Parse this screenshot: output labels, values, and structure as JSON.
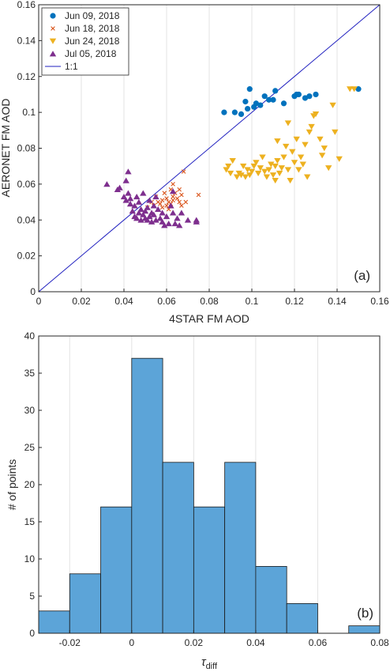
{
  "chart_data": [
    {
      "panel_label": "(a)",
      "type": "scatter",
      "xlabel": "4STAR FM AOD",
      "ylabel": "AERONET FM AOD",
      "xlim": [
        0,
        0.16
      ],
      "ylim": [
        0,
        0.16
      ],
      "xticks": [
        "0",
        "0.02",
        "0.04",
        "0.06",
        "0.08",
        "0.1",
        "0.12",
        "0.14",
        "0.16"
      ],
      "yticks": [
        "0",
        "0.02",
        "0.04",
        "0.06",
        "0.08",
        "0.1",
        "0.12",
        "0.14",
        "0.16"
      ],
      "xgrid": true,
      "ygrid": false,
      "legend_position": "top-left",
      "reference_line": {
        "name": "1:1",
        "color": "#1f1fbf",
        "x": [
          0,
          0.16
        ],
        "y": [
          0,
          0.16
        ]
      },
      "series": [
        {
          "name": "Jun 09, 2018",
          "marker": "circle",
          "color": "#0072bd",
          "points": [
            [
              0.087,
              0.1
            ],
            [
              0.092,
              0.1
            ],
            [
              0.095,
              0.099
            ],
            [
              0.097,
              0.106
            ],
            [
              0.098,
              0.102
            ],
            [
              0.099,
              0.113
            ],
            [
              0.101,
              0.103
            ],
            [
              0.102,
              0.105
            ],
            [
              0.104,
              0.104
            ],
            [
              0.106,
              0.109
            ],
            [
              0.108,
              0.107
            ],
            [
              0.11,
              0.107
            ],
            [
              0.111,
              0.112
            ],
            [
              0.115,
              0.105
            ],
            [
              0.12,
              0.109
            ],
            [
              0.121,
              0.11
            ],
            [
              0.122,
              0.11
            ],
            [
              0.125,
              0.108
            ],
            [
              0.127,
              0.109
            ],
            [
              0.13,
              0.11
            ],
            [
              0.15,
              0.113
            ]
          ]
        },
        {
          "name": "Jun 18, 2018",
          "marker": "x",
          "color": "#d95319",
          "points": [
            [
              0.051,
              0.047
            ],
            [
              0.053,
              0.05
            ],
            [
              0.054,
              0.048
            ],
            [
              0.055,
              0.053
            ],
            [
              0.056,
              0.05
            ],
            [
              0.057,
              0.049
            ],
            [
              0.058,
              0.051
            ],
            [
              0.059,
              0.055
            ],
            [
              0.06,
              0.052
            ],
            [
              0.06,
              0.048
            ],
            [
              0.061,
              0.05
            ],
            [
              0.062,
              0.057
            ],
            [
              0.062,
              0.049
            ],
            [
              0.063,
              0.053
            ],
            [
              0.063,
              0.051
            ],
            [
              0.064,
              0.055
            ],
            [
              0.065,
              0.052
            ],
            [
              0.066,
              0.05
            ],
            [
              0.066,
              0.057
            ],
            [
              0.067,
              0.048
            ],
            [
              0.067,
              0.054
            ],
            [
              0.068,
              0.067
            ],
            [
              0.069,
              0.05
            ],
            [
              0.075,
              0.054
            ],
            [
              0.063,
              0.06
            ],
            [
              0.061,
              0.046
            ],
            [
              0.058,
              0.047
            ]
          ]
        },
        {
          "name": "Jun 24, 2018",
          "marker": "triangle-down",
          "color": "#edb120",
          "points": [
            [
              0.088,
              0.068
            ],
            [
              0.089,
              0.07
            ],
            [
              0.09,
              0.066
            ],
            [
              0.091,
              0.073
            ],
            [
              0.093,
              0.064
            ],
            [
              0.094,
              0.066
            ],
            [
              0.095,
              0.065
            ],
            [
              0.096,
              0.07
            ],
            [
              0.097,
              0.064
            ],
            [
              0.098,
              0.068
            ],
            [
              0.099,
              0.065
            ],
            [
              0.1,
              0.067
            ],
            [
              0.101,
              0.07
            ],
            [
              0.102,
              0.072
            ],
            [
              0.103,
              0.066
            ],
            [
              0.104,
              0.069
            ],
            [
              0.105,
              0.075
            ],
            [
              0.106,
              0.067
            ],
            [
              0.107,
              0.064
            ],
            [
              0.108,
              0.068
            ],
            [
              0.109,
              0.071
            ],
            [
              0.11,
              0.065
            ],
            [
              0.111,
              0.062
            ],
            [
              0.111,
              0.07
            ],
            [
              0.112,
              0.073
            ],
            [
              0.112,
              0.084
            ],
            [
              0.113,
              0.066
            ],
            [
              0.114,
              0.069
            ],
            [
              0.115,
              0.075
            ],
            [
              0.116,
              0.081
            ],
            [
              0.117,
              0.068
            ],
            [
              0.117,
              0.094
            ],
            [
              0.118,
              0.062
            ],
            [
              0.119,
              0.078
            ],
            [
              0.12,
              0.072
            ],
            [
              0.121,
              0.085
            ],
            [
              0.122,
              0.068
            ],
            [
              0.123,
              0.075
            ],
            [
              0.124,
              0.071
            ],
            [
              0.125,
              0.082
            ],
            [
              0.126,
              0.064
            ],
            [
              0.127,
              0.089
            ],
            [
              0.128,
              0.092
            ],
            [
              0.129,
              0.098
            ],
            [
              0.13,
              0.099
            ],
            [
              0.132,
              0.085
            ],
            [
              0.133,
              0.076
            ],
            [
              0.134,
              0.08
            ],
            [
              0.136,
              0.069
            ],
            [
              0.138,
              0.104
            ],
            [
              0.139,
              0.089
            ],
            [
              0.141,
              0.074
            ],
            [
              0.146,
              0.113
            ],
            [
              0.148,
              0.113
            ]
          ]
        },
        {
          "name": "Jul 05, 2018",
          "marker": "triangle-up",
          "color": "#7e2f8e",
          "points": [
            [
              0.032,
              0.06
            ],
            [
              0.037,
              0.057
            ],
            [
              0.038,
              0.058
            ],
            [
              0.04,
              0.053
            ],
            [
              0.041,
              0.051
            ],
            [
              0.041,
              0.062
            ],
            [
              0.042,
              0.055
            ],
            [
              0.043,
              0.049
            ],
            [
              0.043,
              0.052
            ],
            [
              0.044,
              0.045
            ],
            [
              0.045,
              0.042
            ],
            [
              0.045,
              0.048
            ],
            [
              0.046,
              0.041
            ],
            [
              0.046,
              0.053
            ],
            [
              0.047,
              0.044
            ],
            [
              0.047,
              0.05
            ],
            [
              0.048,
              0.04
            ],
            [
              0.048,
              0.046
            ],
            [
              0.049,
              0.043
            ],
            [
              0.049,
              0.055
            ],
            [
              0.05,
              0.041
            ],
            [
              0.05,
              0.045
            ],
            [
              0.051,
              0.04
            ],
            [
              0.051,
              0.047
            ],
            [
              0.052,
              0.042
            ],
            [
              0.052,
              0.051
            ],
            [
              0.053,
              0.044
            ],
            [
              0.053,
              0.039
            ],
            [
              0.054,
              0.048
            ],
            [
              0.054,
              0.043
            ],
            [
              0.055,
              0.04
            ],
            [
              0.055,
              0.053
            ],
            [
              0.056,
              0.046
            ],
            [
              0.057,
              0.041
            ],
            [
              0.058,
              0.044
            ],
            [
              0.058,
              0.039
            ],
            [
              0.059,
              0.037
            ],
            [
              0.06,
              0.042
            ],
            [
              0.061,
              0.038
            ],
            [
              0.062,
              0.048
            ],
            [
              0.063,
              0.044
            ],
            [
              0.063,
              0.056
            ],
            [
              0.064,
              0.038
            ],
            [
              0.065,
              0.041
            ],
            [
              0.066,
              0.037
            ],
            [
              0.067,
              0.044
            ],
            [
              0.07,
              0.04
            ],
            [
              0.074,
              0.04
            ],
            [
              0.074,
              0.039
            ],
            [
              0.042,
              0.067
            ]
          ]
        }
      ]
    },
    {
      "panel_label": "(b)",
      "type": "bar",
      "histogram": true,
      "xlabel": "τ",
      "xlabel_subscript": "diff",
      "ylabel": "# of points",
      "xlim": [
        -0.03,
        0.08
      ],
      "ylim": [
        0,
        40
      ],
      "xticks": [
        "-0.02",
        "0",
        "0.02",
        "0.04",
        "0.06",
        "0.08"
      ],
      "yticks": [
        "0",
        "5",
        "10",
        "15",
        "20",
        "25",
        "30",
        "35",
        "40"
      ],
      "xgrid": true,
      "ygrid": false,
      "color": "#5ca4d8",
      "bins": [
        {
          "from": -0.03,
          "to": -0.02,
          "count": 3
        },
        {
          "from": -0.02,
          "to": -0.01,
          "count": 8
        },
        {
          "from": -0.01,
          "to": 0.0,
          "count": 17
        },
        {
          "from": 0.0,
          "to": 0.01,
          "count": 37
        },
        {
          "from": 0.01,
          "to": 0.02,
          "count": 23
        },
        {
          "from": 0.02,
          "to": 0.03,
          "count": 17
        },
        {
          "from": 0.03,
          "to": 0.04,
          "count": 23
        },
        {
          "from": 0.04,
          "to": 0.05,
          "count": 9
        },
        {
          "from": 0.05,
          "to": 0.06,
          "count": 4
        },
        {
          "from": 0.06,
          "to": 0.07,
          "count": 0
        },
        {
          "from": 0.07,
          "to": 0.08,
          "count": 1
        }
      ]
    }
  ]
}
